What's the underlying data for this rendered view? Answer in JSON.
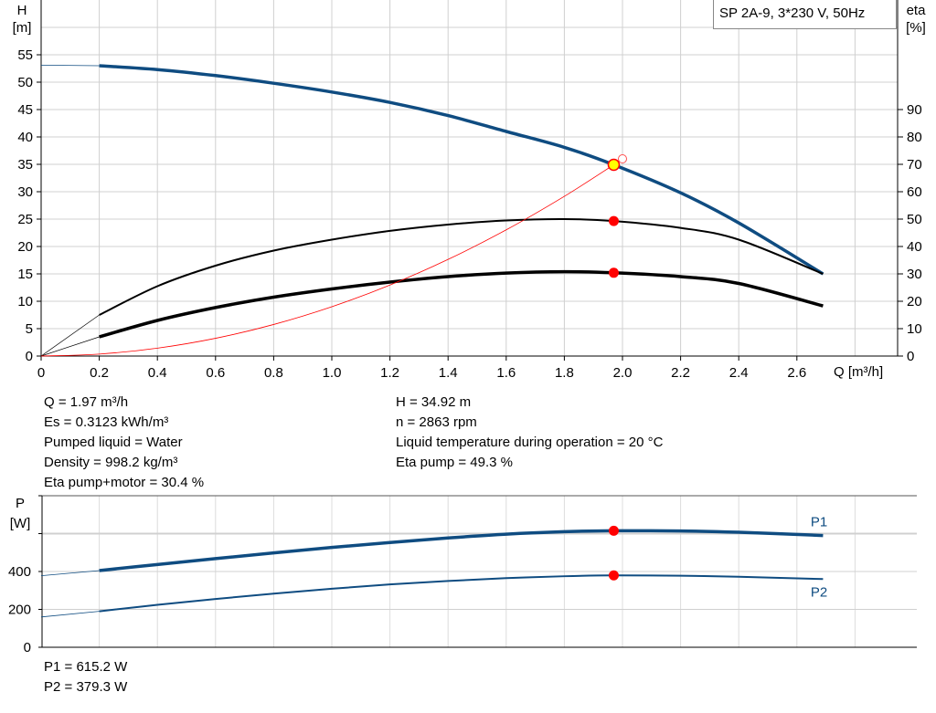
{
  "chart_data": [
    {
      "type": "line",
      "legend_box": "SP 2A-9, 3*230 V, 50Hz",
      "xlabel": "Q [m³/h]",
      "ylabel_left": [
        "H",
        "[m]"
      ],
      "ylabel_right": [
        "eta",
        "[%]"
      ],
      "xlim": [
        0,
        2.95
      ],
      "ylim_left": [
        0,
        65
      ],
      "ylim_right": [
        0,
        130
      ],
      "x_ticks": [
        "0",
        "0.2",
        "0.4",
        "0.6",
        "0.8",
        "1.0",
        "1.2",
        "1.4",
        "1.6",
        "1.8",
        "2.0",
        "2.2",
        "2.4",
        "2.6"
      ],
      "y_ticks_left": [
        "0",
        "5",
        "10",
        "15",
        "20",
        "25",
        "30",
        "35",
        "40",
        "45",
        "50",
        "55"
      ],
      "y_ticks_right": [
        "0",
        "10",
        "20",
        "30",
        "40",
        "50",
        "60",
        "70",
        "80",
        "90"
      ],
      "grid": true,
      "series": [
        {
          "key": "H",
          "axis": "left",
          "color": "#0f4c81",
          "width": 3.5,
          "x": [
            0.2,
            0.4,
            0.6,
            0.8,
            1.0,
            1.2,
            1.4,
            1.6,
            1.8,
            1.97,
            2.2,
            2.4,
            2.69
          ],
          "y": [
            53.0,
            52.3,
            51.2,
            49.8,
            48.2,
            46.3,
            43.9,
            41.0,
            38.1,
            34.92,
            29.8,
            24.3,
            15.0
          ],
          "extrapolated": {
            "x": [
              0,
              0.2
            ],
            "y": [
              53.1,
              53.0
            ]
          }
        },
        {
          "key": "eta_pump",
          "axis": "right",
          "color": "#000000",
          "width": 2,
          "x": [
            0.2,
            0.4,
            0.6,
            0.8,
            1.0,
            1.2,
            1.4,
            1.6,
            1.8,
            1.97,
            2.2,
            2.4,
            2.69
          ],
          "y": [
            15,
            25.5,
            33,
            38.5,
            42.5,
            45.7,
            48,
            49.5,
            50,
            49.3,
            46.8,
            42.5,
            30
          ],
          "extrapolated": {
            "x": [
              0,
              0.2
            ],
            "y": [
              0,
              15
            ]
          }
        },
        {
          "key": "eta_pump_motor",
          "axis": "right",
          "color": "#000000",
          "width": 3.5,
          "x": [
            0.2,
            0.4,
            0.6,
            0.8,
            1.0,
            1.2,
            1.4,
            1.6,
            1.8,
            1.97,
            2.2,
            2.4,
            2.69
          ],
          "y": [
            7,
            13,
            17.7,
            21.5,
            24.5,
            27,
            29,
            30.3,
            30.8,
            30.4,
            29,
            26.5,
            18.3
          ],
          "extrapolated": {
            "x": [
              0,
              0.2
            ],
            "y": [
              0,
              7
            ]
          }
        },
        {
          "key": "system_curve",
          "axis": "left",
          "color": "#ff0000",
          "width": 0.8,
          "x": [
            0,
            0.2,
            0.4,
            0.6,
            0.8,
            1.0,
            1.2,
            1.4,
            1.6,
            1.8,
            1.97
          ],
          "y": [
            0,
            0.36,
            1.44,
            3.24,
            5.76,
            9.0,
            12.96,
            17.64,
            23.04,
            29.16,
            34.92
          ]
        }
      ],
      "operating_point": {
        "x": 1.97,
        "H": 34.92,
        "eta_pump": 49.3,
        "eta_pump_motor": 30.4,
        "color": "#ffff00"
      },
      "requested_point": {
        "x": 2.0,
        "H": 36
      }
    },
    {
      "type": "line",
      "ylabel": [
        "P",
        "[W]"
      ],
      "xlim": [
        0,
        3.03
      ],
      "ylim": [
        0,
        800
      ],
      "y_ticks": [
        "0",
        "200",
        "400"
      ],
      "grid": true,
      "series": [
        {
          "name": "P1",
          "color": "#0f4c81",
          "width": 3.5,
          "x": [
            0.2,
            0.4,
            0.6,
            0.8,
            1.0,
            1.2,
            1.4,
            1.6,
            1.8,
            1.97,
            2.2,
            2.4,
            2.69
          ],
          "y": [
            405,
            437,
            468,
            498,
            527,
            553,
            577,
            597,
            610,
            615.2,
            614,
            607,
            590
          ],
          "extrapolated": {
            "x": [
              0,
              0.2
            ],
            "y": [
              378,
              405
            ]
          }
        },
        {
          "name": "P2",
          "color": "#0f4c81",
          "width": 2,
          "x": [
            0.2,
            0.4,
            0.6,
            0.8,
            1.0,
            1.2,
            1.4,
            1.6,
            1.8,
            1.97,
            2.2,
            2.4,
            2.69
          ],
          "y": [
            190,
            224,
            255,
            283,
            309,
            332,
            350,
            365,
            375,
            379.3,
            378,
            372,
            360
          ],
          "extrapolated": {
            "x": [
              0,
              0.2
            ],
            "y": [
              160,
              190
            ]
          }
        }
      ],
      "operating_point": {
        "x": 1.97,
        "P1": 615.2,
        "P2": 379.3
      }
    }
  ],
  "results": {
    "left": [
      "Q = 1.97 m³/h",
      "Es = 0.3123 kWh/m³",
      "Pumped liquid = Water",
      "Density = 998.2 kg/m³",
      "Eta pump+motor = 30.4 %"
    ],
    "right": [
      "H = 34.92 m",
      "n = 2863 rpm",
      "Liquid temperature during operation = 20 °C",
      "Eta pump = 49.3 %"
    ],
    "power": [
      "P1 = 615.2 W",
      "P2 = 379.3 W"
    ]
  }
}
